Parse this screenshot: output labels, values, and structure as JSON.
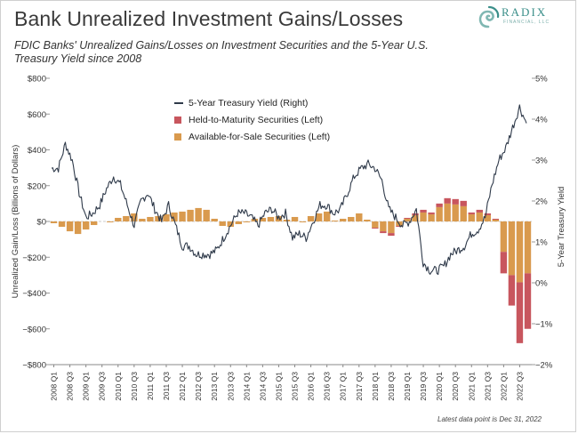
{
  "header": {
    "title": "Bank Unrealized Investment Gains/Losses",
    "subtitle": "FDIC Banks' Unrealized Gains/Losses on Investment Securities and the 5-Year U.S. Treasury Yield since 2008"
  },
  "logo": {
    "name": "RADIX",
    "tagline": "FINANCIAL, LLC"
  },
  "footnote": "Latest data point is Dec 31, 2022",
  "colors": {
    "yield": "#2f3a4a",
    "htm": "#c8565e",
    "afs": "#d99a4e",
    "axis": "#555555"
  },
  "chart_data": {
    "type": "bar+line",
    "title": "Bank Unrealized Investment Gains/Losses",
    "ylabel": "Unrealized Gain/Loss (Billions of Dollars)",
    "y2label": "5-Year Treasury Yield",
    "ylim": [
      -800,
      800
    ],
    "y2lim": [
      -2,
      5
    ],
    "y_ticks": [
      "$800",
      "$600",
      "$400",
      "$200",
      "$0",
      "−$200",
      "−$400",
      "−$600",
      "−$800"
    ],
    "y_tick_values": [
      800,
      600,
      400,
      200,
      0,
      -200,
      -400,
      -600,
      -800
    ],
    "y2_ticks": [
      "5%",
      "4%",
      "3%",
      "2%",
      "1%",
      "0%",
      "−1%",
      "−2%"
    ],
    "y2_tick_values": [
      5,
      4,
      3,
      2,
      1,
      0,
      -1,
      -2
    ],
    "x_tick_labels": [
      "2008 Q1",
      "2008 Q3",
      "2009 Q1",
      "2009 Q3",
      "2010 Q1",
      "2010 Q3",
      "2011 Q1",
      "2011 Q3",
      "2012 Q1",
      "2012 Q3",
      "2013 Q1",
      "2013 Q3",
      "2014 Q1",
      "2014 Q3",
      "2015 Q1",
      "2015 Q3",
      "2016 Q1",
      "2016 Q3",
      "2017 Q1",
      "2017 Q3",
      "2018 Q1",
      "2018 Q3",
      "2019 Q1",
      "2019 Q3",
      "2020 Q1",
      "2020 Q3",
      "2021 Q1",
      "2021 Q3",
      "2022 Q1",
      "2022 Q3"
    ],
    "legend": [
      "5-Year Treasury Yield (Right)",
      "Held-to-Maturity Securities (Left)",
      "Available-for-Sale Securities (Left)"
    ],
    "quarters": [
      "2008 Q1",
      "2008 Q2",
      "2008 Q3",
      "2008 Q4",
      "2009 Q1",
      "2009 Q2",
      "2009 Q3",
      "2009 Q4",
      "2010 Q1",
      "2010 Q2",
      "2010 Q3",
      "2010 Q4",
      "2011 Q1",
      "2011 Q2",
      "2011 Q3",
      "2011 Q4",
      "2012 Q1",
      "2012 Q2",
      "2012 Q3",
      "2012 Q4",
      "2013 Q1",
      "2013 Q2",
      "2013 Q3",
      "2013 Q4",
      "2014 Q1",
      "2014 Q2",
      "2014 Q3",
      "2014 Q4",
      "2015 Q1",
      "2015 Q2",
      "2015 Q3",
      "2015 Q4",
      "2016 Q1",
      "2016 Q2",
      "2016 Q3",
      "2016 Q4",
      "2017 Q1",
      "2017 Q2",
      "2017 Q3",
      "2017 Q4",
      "2018 Q1",
      "2018 Q2",
      "2018 Q3",
      "2018 Q4",
      "2019 Q1",
      "2019 Q2",
      "2019 Q3",
      "2019 Q4",
      "2020 Q1",
      "2020 Q2",
      "2020 Q3",
      "2020 Q4",
      "2021 Q1",
      "2021 Q2",
      "2021 Q3",
      "2021 Q4",
      "2022 Q1",
      "2022 Q2",
      "2022 Q3",
      "2022 Q4"
    ],
    "series": [
      {
        "name": "Available-for-Sale Securities (Left)",
        "values": [
          -10,
          -30,
          -55,
          -70,
          -45,
          -20,
          0,
          -5,
          20,
          30,
          45,
          15,
          25,
          30,
          40,
          50,
          55,
          65,
          75,
          65,
          15,
          -25,
          -30,
          -15,
          -5,
          15,
          20,
          25,
          30,
          10,
          25,
          -5,
          30,
          45,
          55,
          5,
          15,
          25,
          45,
          10,
          -35,
          -55,
          -65,
          -25,
          15,
          35,
          50,
          40,
          80,
          100,
          95,
          85,
          40,
          50,
          35,
          10,
          -170,
          -300,
          -340,
          -290
        ]
      },
      {
        "name": "Held-to-Maturity Securities (Left)",
        "values": [
          0,
          0,
          0,
          0,
          0,
          0,
          0,
          0,
          0,
          0,
          0,
          0,
          0,
          0,
          0,
          0,
          0,
          0,
          0,
          0,
          0,
          0,
          0,
          0,
          0,
          0,
          0,
          0,
          0,
          0,
          0,
          0,
          0,
          0,
          0,
          0,
          0,
          0,
          0,
          0,
          -5,
          -10,
          -15,
          -5,
          5,
          10,
          15,
          10,
          20,
          30,
          30,
          30,
          10,
          15,
          10,
          5,
          -120,
          -170,
          -340,
          -310
        ]
      }
    ],
    "yield_series": {
      "name": "5-Year Treasury Yield (Right)",
      "values": [
        2.8,
        2.8,
        3.4,
        3.0,
        2.2,
        1.6,
        1.7,
        1.9,
        2.3,
        2.6,
        2.4,
        1.9,
        1.4,
        2.0,
        2.2,
        1.8,
        1.5,
        1.9,
        1.4,
        0.9,
        0.9,
        0.7,
        0.7,
        0.7,
        0.8,
        1.1,
        1.4,
        1.7,
        1.7,
        1.6,
        1.4,
        1.7,
        1.8,
        1.6,
        1.7,
        1.1,
        1.2,
        1.1,
        1.5,
        1.9,
        1.9,
        1.7,
        1.8,
        2.2,
        2.6,
        2.8,
        2.9,
        2.8,
        2.5,
        1.8,
        1.6,
        1.4,
        1.5,
        1.8,
        0.5,
        0.3,
        0.3,
        0.4,
        0.7,
        0.8,
        0.9,
        1.2,
        1.3,
        1.6,
        2.4,
        3.0,
        3.3,
        3.8,
        4.3,
        3.9
      ]
    }
  }
}
